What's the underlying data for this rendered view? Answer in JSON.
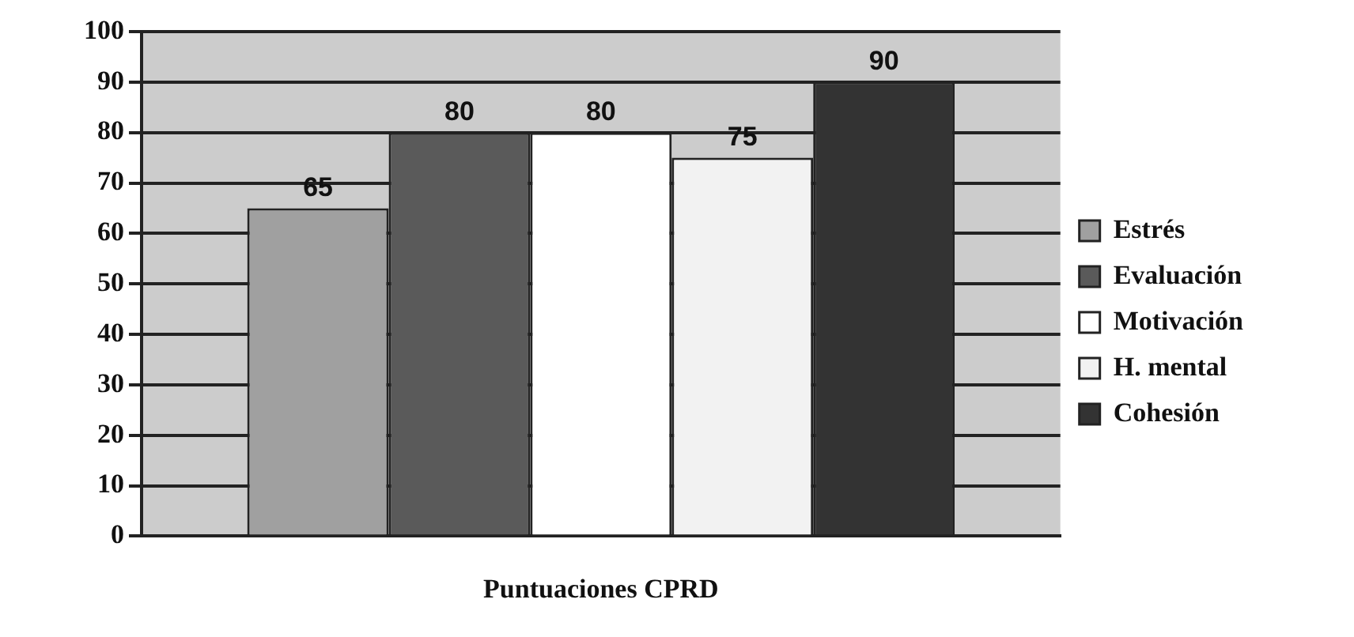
{
  "chart_data": {
    "type": "bar",
    "categories": [
      null
    ],
    "xlabel": "Puntuaciones CPRD",
    "series": [
      {
        "name": "Estrés",
        "color": "#a0a0a0",
        "values": [
          65
        ]
      },
      {
        "name": "Evaluación",
        "color": "#5a5a5a",
        "values": [
          80
        ]
      },
      {
        "name": "Motivación",
        "color": "#ffffff",
        "values": [
          80
        ]
      },
      {
        "name": "H. mental",
        "color": "#f2f2f2",
        "values": [
          75
        ]
      },
      {
        "name": "Cohesión",
        "color": "#333333",
        "values": [
          90
        ]
      }
    ],
    "ylim": [
      0,
      100
    ],
    "yticks": [
      0,
      10,
      20,
      30,
      40,
      50,
      60,
      70,
      80,
      90,
      100
    ],
    "grid": "y",
    "legend": "right",
    "data_labels": true
  }
}
